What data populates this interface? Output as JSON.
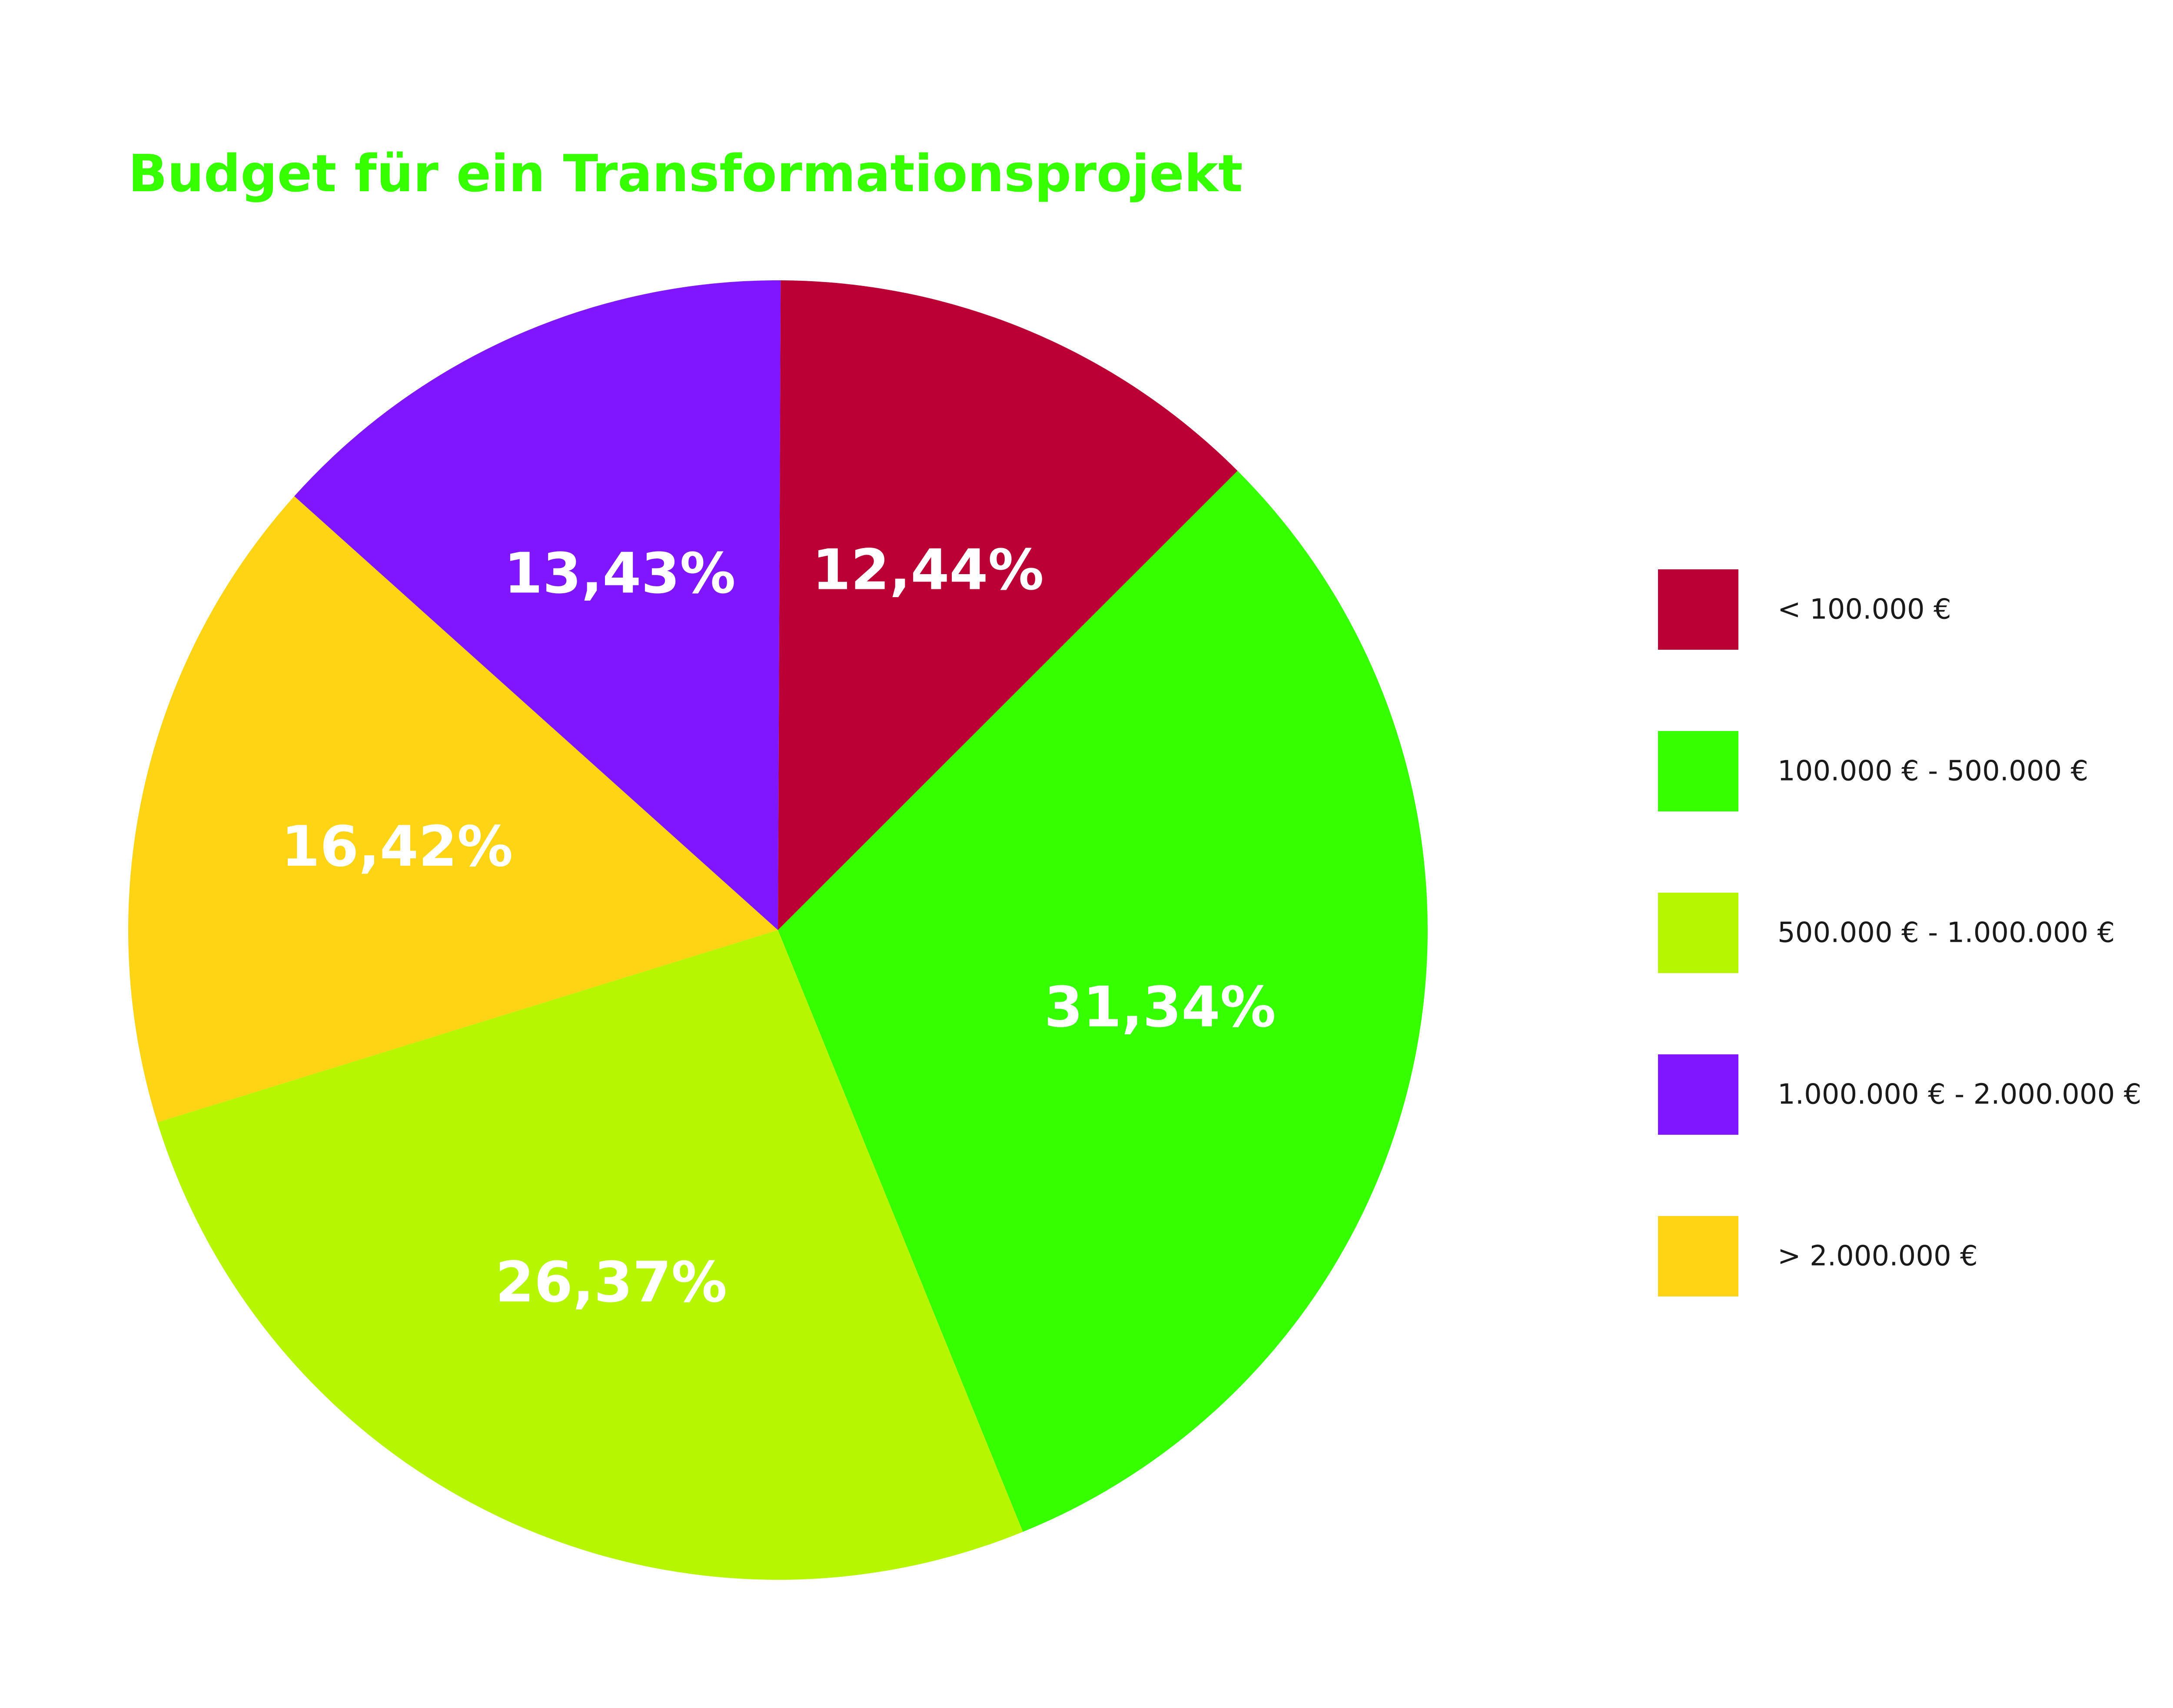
{
  "chart_data": {
    "type": "pie",
    "title": "Budget für ein Transformationsprojekt",
    "title_color": "#36ff00",
    "categories": [
      "< 100.000 €",
      "100.000 € - 500.000 €",
      "500.000 € - 1.000.000 €",
      "1.000.000 € - 2.000.000 €",
      "> 2.000.000 €"
    ],
    "values": [
      12.44,
      31.34,
      26.37,
      13.43,
      16.42
    ],
    "data_labels": [
      "12,44%",
      "31,34%",
      "26,37%",
      "13,43%",
      "16,42%"
    ],
    "colors": [
      "#bb0035",
      "#36ff00",
      "#b5f600",
      "#7f16ff",
      "#ffd414"
    ],
    "legend_position": "right",
    "slice_order_in_chart": [
      0,
      1,
      2,
      4,
      3
    ]
  }
}
